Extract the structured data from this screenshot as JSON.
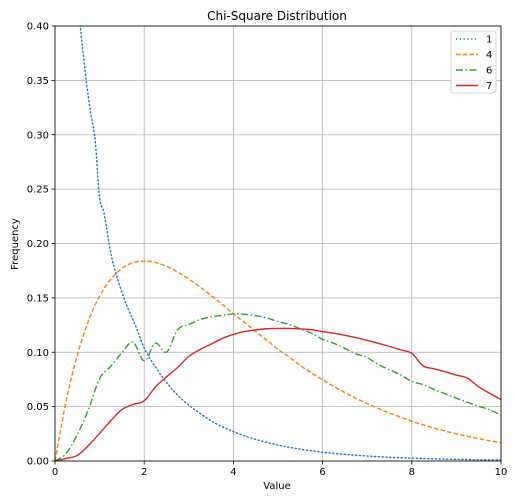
{
  "chart_data": {
    "type": "line",
    "title": "Chi-Square Distribution",
    "xlabel": "Value",
    "ylabel": "Frequency",
    "xlim": [
      0,
      10
    ],
    "ylim": [
      0,
      0.4
    ],
    "x_ticks": [
      "0",
      "2",
      "4",
      "6",
      "8",
      "10"
    ],
    "y_ticks": [
      "0.00",
      "0.05",
      "0.10",
      "0.15",
      "0.20",
      "0.25",
      "0.30",
      "0.35",
      "0.40"
    ],
    "grid": true,
    "legend_position": "top-right",
    "x": [
      0.0,
      0.25,
      0.5,
      0.75,
      1.0,
      1.25,
      1.5,
      1.75,
      2.0,
      2.25,
      2.5,
      2.75,
      3.0,
      3.25,
      3.5,
      3.75,
      4.0,
      4.25,
      4.5,
      4.75,
      5.0,
      5.25,
      5.5,
      5.75,
      6.0,
      6.25,
      6.5,
      6.75,
      7.0,
      7.25,
      7.5,
      7.75,
      8.0,
      8.25,
      8.5,
      8.75,
      9.0,
      9.25,
      9.5,
      9.75,
      10.0
    ],
    "series": [
      {
        "name": "1",
        "color": "#1f77b4",
        "style": "dotted",
        "x": [
          0.55,
          0.6,
          0.7,
          0.8,
          0.9,
          1.0,
          1.1,
          1.25,
          1.4,
          1.6,
          1.8,
          2.0,
          2.25,
          2.5,
          2.75,
          3.0,
          3.25,
          3.5,
          3.75,
          4.0,
          4.25,
          4.5,
          4.75,
          5.0,
          5.25,
          5.5,
          5.75,
          6.0,
          6.25,
          6.5,
          6.75,
          7.0,
          7.25,
          7.5,
          7.75,
          8.0,
          8.25,
          8.5,
          8.75,
          9.0,
          9.25,
          9.5,
          9.75,
          10.0
        ],
        "values": [
          0.4079,
          0.3864,
          0.3499,
          0.32,
          0.295,
          0.242,
          0.228,
          0.1914,
          0.168,
          0.1438,
          0.1251,
          0.1038,
          0.0866,
          0.0723,
          0.0604,
          0.0514,
          0.0438,
          0.037,
          0.0314,
          0.027,
          0.0231,
          0.0199,
          0.0171,
          0.0146,
          0.0126,
          0.0109,
          0.0094,
          0.0081,
          0.007,
          0.0061,
          0.0053,
          0.0046,
          0.004,
          0.0034,
          0.003,
          0.0026,
          0.0023,
          0.002,
          0.0017,
          0.0015,
          0.0013,
          0.0011,
          0.001,
          0.0009
        ]
      },
      {
        "name": "4",
        "color": "#ff7f0e",
        "style": "dashed",
        "values": [
          0.0,
          0.0552,
          0.0974,
          0.1289,
          0.1516,
          0.1671,
          0.1771,
          0.1824,
          0.1839,
          0.1826,
          0.179,
          0.1737,
          0.1673,
          0.16,
          0.1522,
          0.1441,
          0.1353,
          0.1274,
          0.1191,
          0.1111,
          0.1026,
          0.0957,
          0.0878,
          0.081,
          0.0747,
          0.0686,
          0.0629,
          0.0576,
          0.0528,
          0.0483,
          0.0441,
          0.0403,
          0.0366,
          0.0333,
          0.0303,
          0.0275,
          0.025,
          0.0227,
          0.0206,
          0.0186,
          0.0168
        ]
      },
      {
        "name": "6",
        "color": "#2ca02c",
        "style": "dashdot",
        "values": [
          0.0,
          0.0069,
          0.0243,
          0.0473,
          0.0758,
          0.087,
          0.0996,
          0.1093,
          0.092,
          0.1084,
          0.1001,
          0.1207,
          0.1255,
          0.13,
          0.1326,
          0.1339,
          0.1353,
          0.1349,
          0.1336,
          0.1314,
          0.1283,
          0.1255,
          0.1216,
          0.1175,
          0.112,
          0.1083,
          0.1034,
          0.0985,
          0.0951,
          0.0887,
          0.0839,
          0.0791,
          0.0733,
          0.0702,
          0.0659,
          0.0618,
          0.0578,
          0.054,
          0.0504,
          0.047,
          0.0421
        ]
      },
      {
        "name": "7",
        "color": "#d62728",
        "style": "solid",
        "values": [
          0.0,
          0.0023,
          0.0052,
          0.0142,
          0.0253,
          0.037,
          0.0473,
          0.052,
          0.0553,
          0.068,
          0.0774,
          0.086,
          0.0962,
          0.1024,
          0.1075,
          0.1127,
          0.1164,
          0.119,
          0.1205,
          0.1216,
          0.1219,
          0.1219,
          0.1214,
          0.1207,
          0.119,
          0.1175,
          0.1156,
          0.1134,
          0.1109,
          0.1082,
          0.1053,
          0.1022,
          0.099,
          0.0876,
          0.0848,
          0.082,
          0.079,
          0.0761,
          0.0682,
          0.0621,
          0.0566
        ]
      }
    ]
  }
}
